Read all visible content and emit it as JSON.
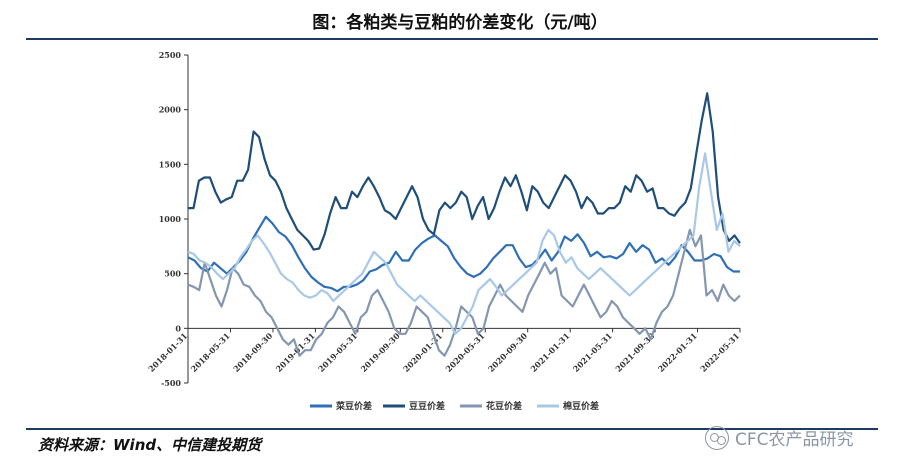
{
  "title": "图：各粕类与豆粕的价差变化（元/吨）",
  "source": "资料来源：Wind、中信建投期货",
  "watermark": "CFC农产品研究",
  "chart_data": {
    "type": "line",
    "ylim": [
      -500,
      2500
    ],
    "yticks": [
      -500,
      0,
      500,
      1000,
      1500,
      2000,
      2500
    ],
    "x_ticks": [
      "2018-01-31",
      "2018-05-31",
      "2018-09-30",
      "2019-01-31",
      "2019-05-31",
      "2019-09-30",
      "2020-01-31",
      "2020-05-31",
      "2020-09-30",
      "2021-01-31",
      "2021-05-31",
      "2021-09-30",
      "2022-01-31",
      "2022-05-31"
    ],
    "legend_position": "bottom",
    "series": [
      {
        "name": "菜豆价差",
        "color": "#2e6fb5",
        "values": [
          650,
          620,
          550,
          520,
          600,
          550,
          500,
          560,
          620,
          700,
          820,
          920,
          1020,
          960,
          880,
          840,
          760,
          650,
          550,
          470,
          420,
          380,
          370,
          340,
          380,
          380,
          400,
          440,
          520,
          540,
          580,
          600,
          700,
          620,
          620,
          720,
          780,
          820,
          850,
          800,
          750,
          640,
          560,
          500,
          470,
          500,
          560,
          640,
          700,
          760,
          760,
          640,
          560,
          580,
          640,
          720,
          620,
          700,
          840,
          800,
          860,
          780,
          660,
          700,
          650,
          660,
          640,
          680,
          780,
          700,
          760,
          720,
          600,
          640,
          580,
          650,
          760,
          700,
          620,
          620,
          640,
          680,
          660,
          560,
          520,
          520
        ]
      },
      {
        "name": "豆豆价差",
        "color": "#1f4e79",
        "values": [
          1100,
          1100,
          1350,
          1380,
          1380,
          1250,
          1150,
          1180,
          1200,
          1350,
          1350,
          1450,
          1800,
          1750,
          1550,
          1400,
          1350,
          1250,
          1100,
          1000,
          900,
          850,
          800,
          720,
          730,
          860,
          1050,
          1200,
          1100,
          1100,
          1250,
          1200,
          1300,
          1380,
          1300,
          1200,
          1080,
          1050,
          1000,
          1100,
          1200,
          1300,
          1200,
          1000,
          900,
          860,
          1080,
          1150,
          1100,
          1150,
          1250,
          1200,
          1000,
          1120,
          1200,
          1000,
          1100,
          1250,
          1380,
          1300,
          1400,
          1250,
          1080,
          1300,
          1250,
          1150,
          1100,
          1200,
          1300,
          1400,
          1350,
          1250,
          1100,
          1200,
          1150,
          1050,
          1050,
          1100,
          1100,
          1150,
          1300,
          1250,
          1400,
          1350,
          1250,
          1280,
          1100,
          1100,
          1050,
          1030,
          1100,
          1150,
          1280,
          1600,
          1900,
          2150,
          1800,
          1200,
          900,
          800,
          850,
          780
        ]
      },
      {
        "name": "花豆价差",
        "color": "#8496b0",
        "values": [
          400,
          380,
          350,
          600,
          450,
          300,
          200,
          350,
          550,
          500,
          400,
          380,
          300,
          250,
          150,
          100,
          0,
          -100,
          -150,
          -100,
          -250,
          -200,
          -200,
          -100,
          -50,
          50,
          100,
          200,
          150,
          50,
          -50,
          100,
          150,
          300,
          350,
          250,
          150,
          0,
          -50,
          -50,
          50,
          200,
          150,
          100,
          -50,
          -200,
          -250,
          -150,
          0,
          200,
          150,
          100,
          -50,
          0,
          200,
          300,
          400,
          300,
          250,
          200,
          150,
          300,
          400,
          500,
          600,
          500,
          550,
          300,
          250,
          200,
          300,
          400,
          300,
          200,
          100,
          150,
          250,
          200,
          100,
          50,
          0,
          -50,
          0,
          -100,
          50,
          150,
          200,
          300,
          500,
          700,
          900,
          750,
          850,
          300,
          350,
          250,
          400,
          300,
          250,
          300
        ]
      },
      {
        "name": "棉豆价差",
        "color": "#a9c8e8",
        "values": [
          700,
          680,
          620,
          600,
          560,
          500,
          450,
          500,
          550,
          650,
          720,
          800,
          850,
          780,
          700,
          600,
          500,
          450,
          420,
          350,
          300,
          280,
          300,
          350,
          320,
          250,
          300,
          350,
          400,
          450,
          500,
          600,
          700,
          650,
          600,
          500,
          400,
          350,
          300,
          250,
          300,
          250,
          200,
          150,
          100,
          50,
          -50,
          0,
          100,
          200,
          350,
          400,
          450,
          380,
          300,
          350,
          400,
          450,
          500,
          550,
          600,
          800,
          900,
          850,
          700,
          600,
          650,
          550,
          500,
          450,
          500,
          550,
          500,
          450,
          400,
          350,
          300,
          350,
          400,
          450,
          500,
          550,
          600,
          650,
          700,
          750,
          800,
          850,
          1300,
          1600,
          1250,
          900,
          1050,
          700,
          800,
          750
        ]
      }
    ]
  }
}
